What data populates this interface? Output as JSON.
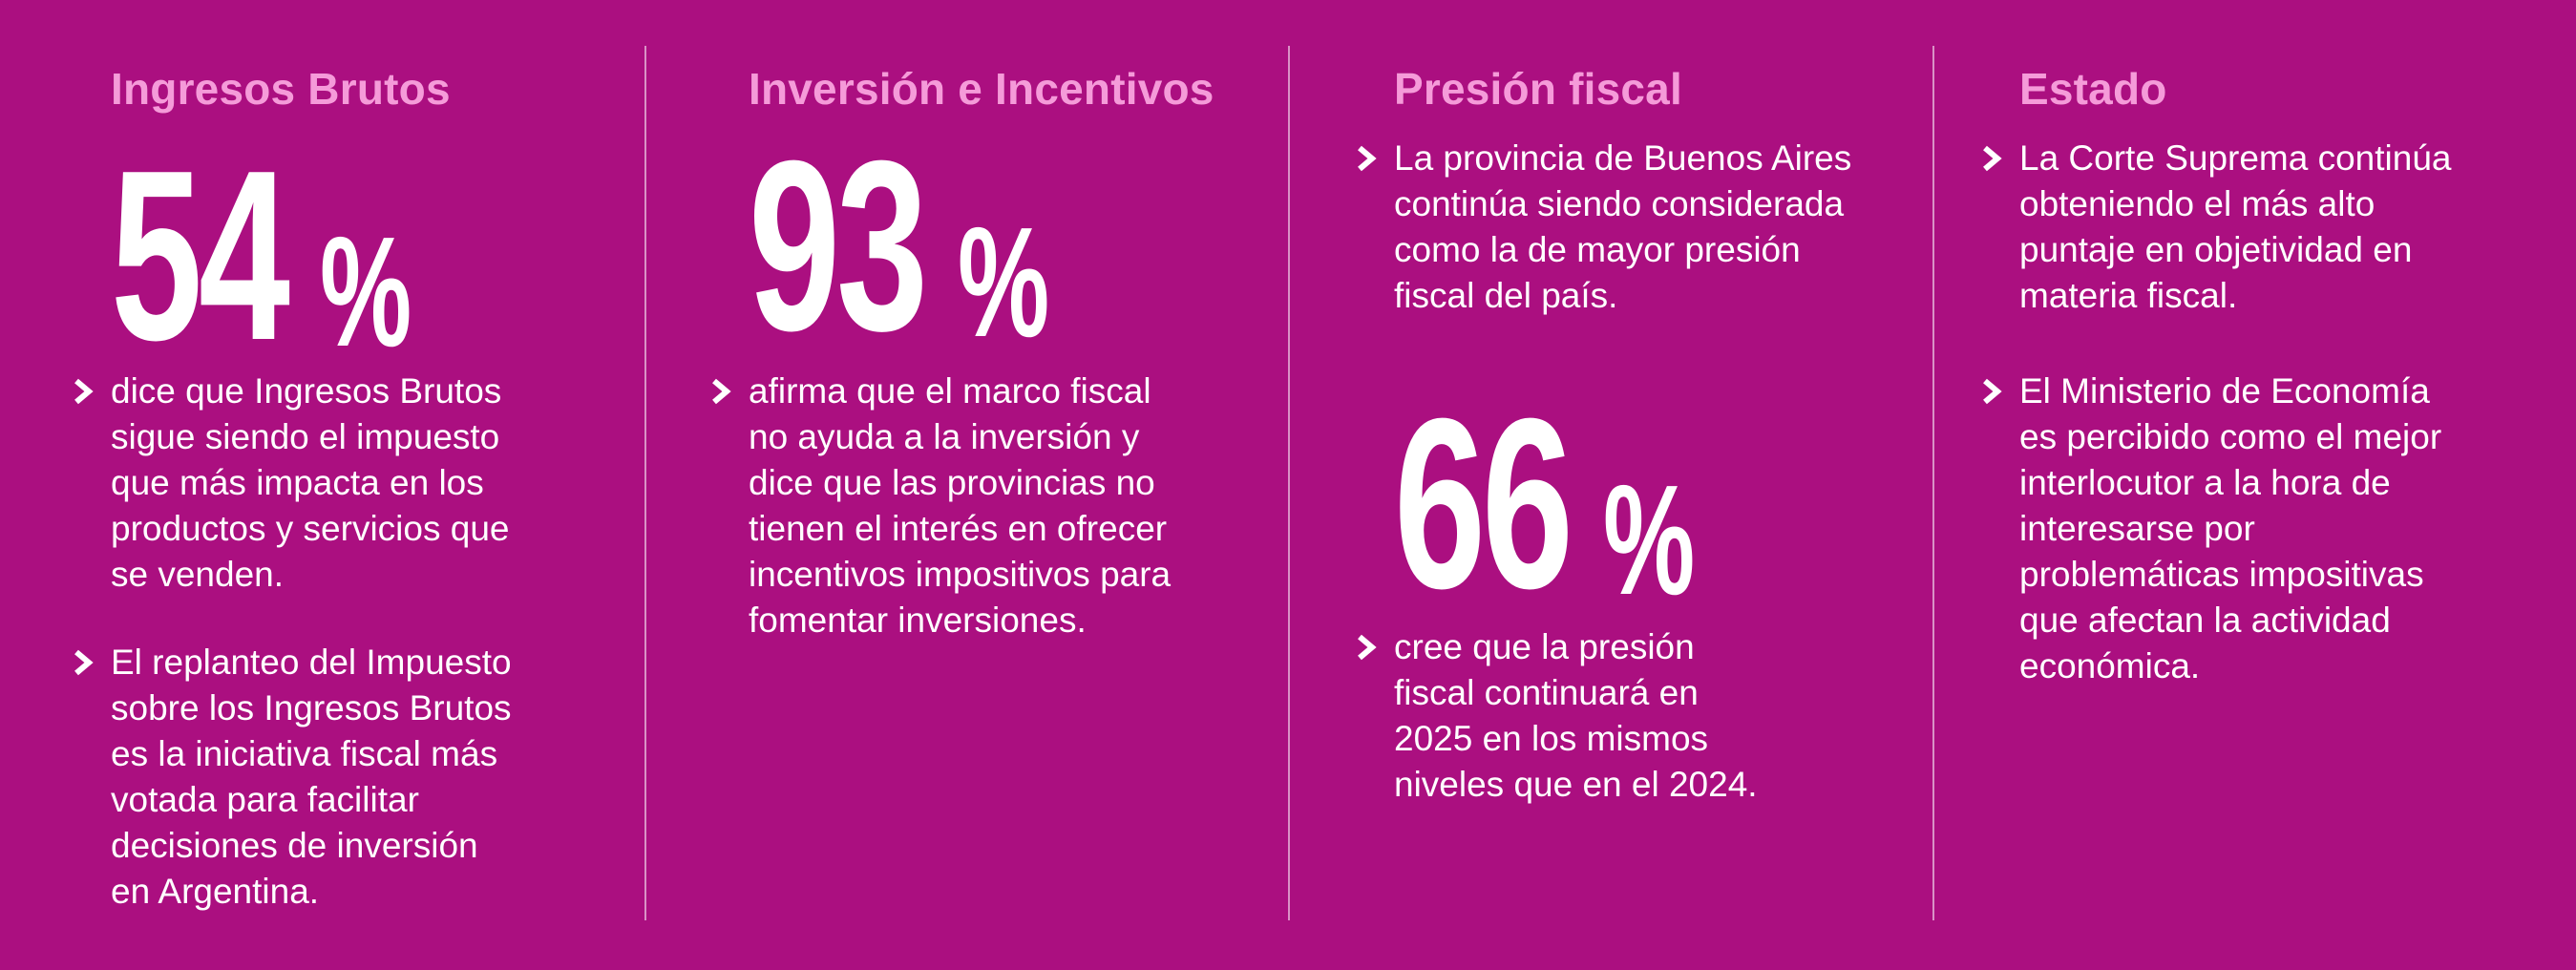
{
  "colors": {
    "background": "#ab0f80",
    "heading": "#f59bd9",
    "text": "#ffffff",
    "divider": "#e6a6d6"
  },
  "columns": [
    {
      "heading": "Ingresos Brutos",
      "stat": {
        "number": "54",
        "unit": "%"
      },
      "bullets": [
        "dice que Ingresos Brutos\nsigue siendo el impuesto\nque más impacta en los\nproductos y servicios que\nse venden.",
        "El replanteo del Impuesto\nsobre los Ingresos Brutos\nes la iniciativa fiscal más\nvotada para facilitar\ndecisiones de inversión\nen Argentina."
      ]
    },
    {
      "heading": "Inversión e Incentivos",
      "stat": {
        "number": "93",
        "unit": "%"
      },
      "bullets": [
        "afirma que el marco fiscal\nno ayuda a la inversión y\ndice que las provincias no\ntienen el interés en ofrecer\nincentivos impositivos para\nfomentar inversiones."
      ]
    },
    {
      "heading": "Presión fiscal",
      "stat": {
        "number": "66",
        "unit": "%"
      },
      "bullets": [
        "La provincia de Buenos Aires\ncontinúa siendo considerada\ncomo la de mayor presión\nfiscal del país.",
        "cree que la presión\nfiscal continuará en\n2025 en los mismos\nniveles que en el 2024."
      ]
    },
    {
      "heading": "Estado",
      "bullets": [
        "La Corte Suprema continúa\nobteniendo el más alto\npuntaje en objetividad en\nmateria fiscal.",
        "El Ministerio de Economía\nes percibido como el mejor\ninterlocutor a la hora de\ninteresarse por\nproblemáticas impositivas\nque afectan la actividad\neconómica."
      ]
    }
  ],
  "icons": {
    "bullet": "chevron-right-icon"
  }
}
